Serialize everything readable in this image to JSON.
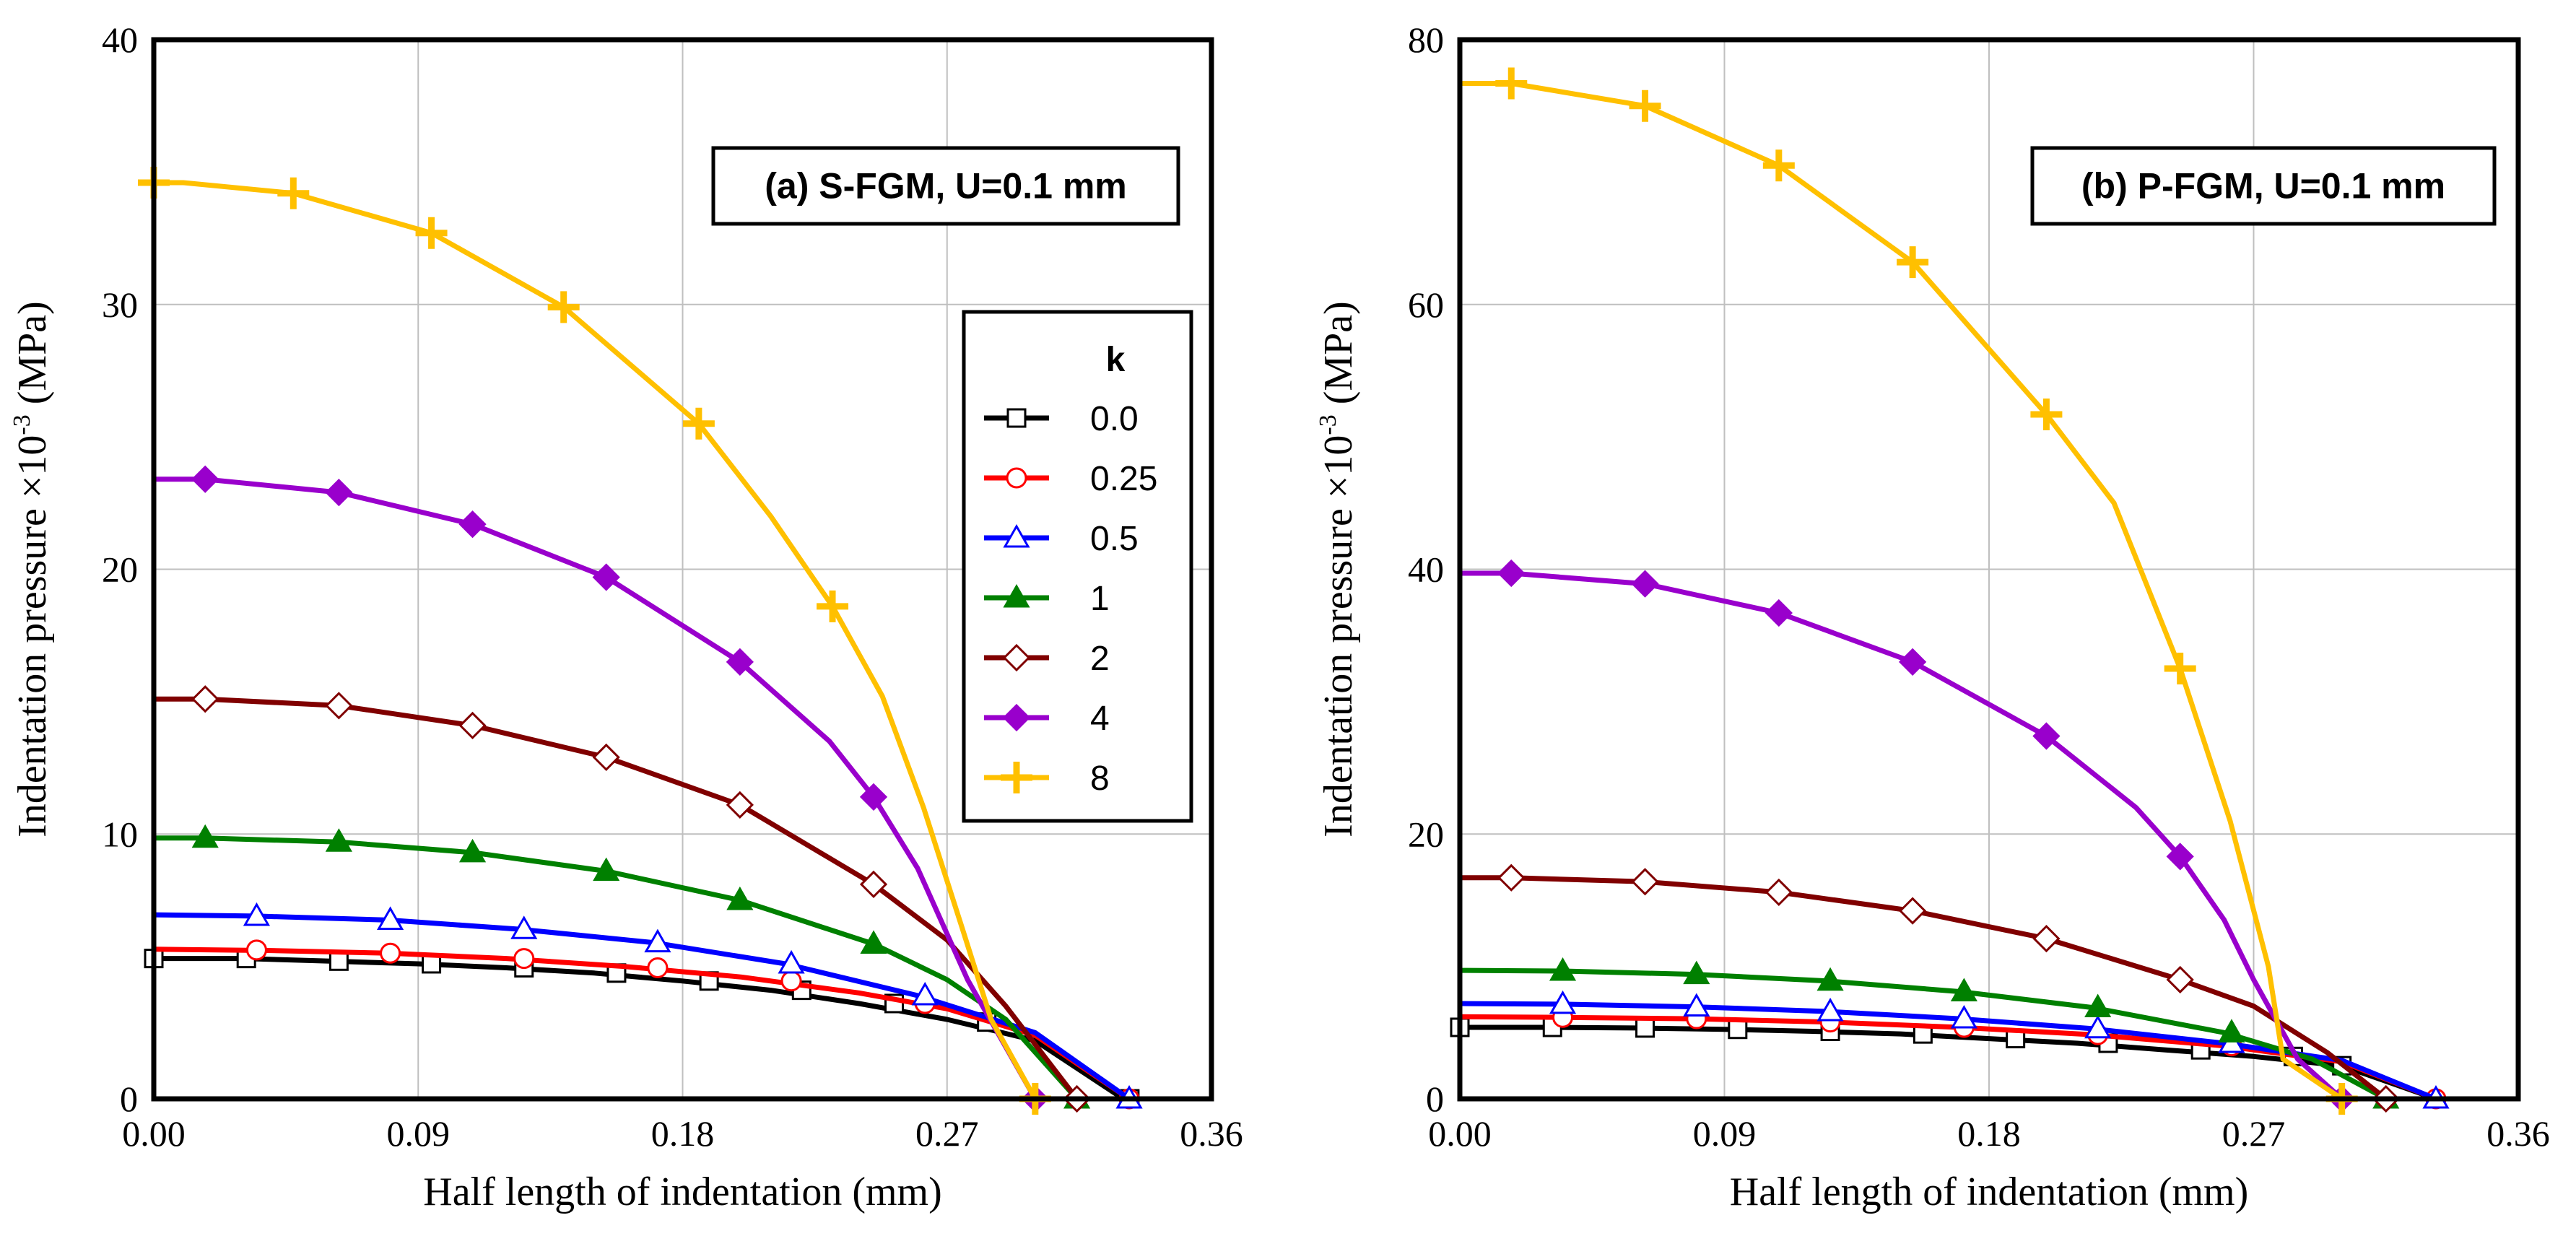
{
  "chart_data": [
    {
      "type": "line",
      "title": "(a) S-FGM, U=0.1 mm",
      "xlabel": "Half length of indentation (mm)",
      "ylabel": "Indentation pressure ×10",
      "ylabel_sup": "-3",
      "ylabel_unit": " (MPa)",
      "xlim": [
        0,
        0.36
      ],
      "ylim": [
        0,
        40
      ],
      "xticks": [
        0,
        0.09,
        0.18,
        0.27,
        0.36
      ],
      "xtick_labels": [
        "0.00",
        "0.09",
        "0.18",
        "0.27",
        "0.36"
      ],
      "yticks": [
        0,
        10,
        20,
        30,
        40
      ],
      "ytick_labels": [
        "0",
        "10",
        "20",
        "30",
        "40"
      ],
      "grid": true,
      "legend": {
        "title": "k",
        "placement": "right"
      },
      "series": [
        {
          "name": "0.0",
          "color": "#000000",
          "marker": "square-open",
          "x": [
            0,
            0.03,
            0.06,
            0.09,
            0.12,
            0.15,
            0.18,
            0.21,
            0.24,
            0.27,
            0.3,
            0.33
          ],
          "y": [
            5.3,
            5.3,
            5.2,
            5.1,
            4.95,
            4.75,
            4.45,
            4.1,
            3.6,
            3.0,
            2.2,
            0
          ],
          "marker_x": [
            0,
            0.0315,
            0.063,
            0.0945,
            0.126,
            0.1575,
            0.189,
            0.2205,
            0.252,
            0.2835,
            0.3322
          ],
          "marker_y": [
            5.3,
            5.3,
            5.2,
            5.1,
            4.95,
            4.75,
            4.45,
            4.1,
            3.6,
            2.9,
            0
          ]
        },
        {
          "name": "0.25",
          "color": "#ff0000",
          "marker": "circle-open",
          "x": [
            0,
            0.04,
            0.08,
            0.12,
            0.16,
            0.2,
            0.24,
            0.27,
            0.3,
            0.332
          ],
          "y": [
            5.65,
            5.6,
            5.5,
            5.3,
            5.0,
            4.6,
            4.0,
            3.4,
            2.4,
            0
          ],
          "marker_x": [
            0.035,
            0.0805,
            0.126,
            0.1715,
            0.217,
            0.2625,
            0.332
          ],
          "marker_y": [
            5.62,
            5.5,
            5.3,
            4.95,
            4.45,
            3.6,
            0
          ]
        },
        {
          "name": "0.5",
          "color": "#0000ff",
          "marker": "triangle-open",
          "x": [
            0,
            0.035,
            0.08,
            0.125,
            0.17,
            0.215,
            0.26,
            0.3,
            0.332
          ],
          "y": [
            6.95,
            6.9,
            6.75,
            6.4,
            5.9,
            5.1,
            3.9,
            2.5,
            0
          ],
          "marker_x": [
            0.035,
            0.0805,
            0.126,
            0.1715,
            0.217,
            0.2625,
            0.332
          ],
          "marker_y": [
            6.9,
            6.75,
            6.4,
            5.9,
            5.1,
            3.9,
            0
          ]
        },
        {
          "name": "1",
          "color": "#008000",
          "marker": "triangle-filled",
          "x": [
            0,
            0.0175,
            0.063,
            0.1085,
            0.154,
            0.1995,
            0.245,
            0.27,
            0.29,
            0.3142
          ],
          "y": [
            9.85,
            9.85,
            9.7,
            9.3,
            8.6,
            7.5,
            5.85,
            4.5,
            3.0,
            0
          ],
          "marker_x": [
            0.0175,
            0.063,
            0.1085,
            0.154,
            0.1995,
            0.245,
            0.3142
          ],
          "marker_y": [
            9.85,
            9.7,
            9.3,
            8.6,
            7.5,
            5.85,
            0
          ]
        },
        {
          "name": "2",
          "color": "#800000",
          "marker": "diamond-open",
          "x": [
            0,
            0.0175,
            0.063,
            0.1085,
            0.154,
            0.1995,
            0.245,
            0.27,
            0.29,
            0.3142
          ],
          "y": [
            15.1,
            15.1,
            14.85,
            14.1,
            12.9,
            11.1,
            8.1,
            6.0,
            3.5,
            0
          ],
          "marker_x": [
            0.0175,
            0.063,
            0.1085,
            0.154,
            0.1995,
            0.245,
            0.3142
          ],
          "marker_y": [
            15.1,
            14.85,
            14.1,
            12.9,
            11.1,
            8.1,
            0
          ]
        },
        {
          "name": "4",
          "color": "#9900cc",
          "marker": "diamond-filled",
          "x": [
            0,
            0.0175,
            0.063,
            0.1085,
            0.154,
            0.1995,
            0.23,
            0.245,
            0.26,
            0.277,
            0.3
          ],
          "y": [
            23.4,
            23.4,
            22.9,
            21.7,
            19.7,
            16.5,
            13.5,
            11.4,
            8.7,
            4.5,
            0
          ],
          "marker_x": [
            0.0175,
            0.063,
            0.1085,
            0.154,
            0.1995,
            0.245,
            0.3
          ],
          "marker_y": [
            23.4,
            22.9,
            21.7,
            19.7,
            16.5,
            11.4,
            0
          ]
        },
        {
          "name": "8",
          "color": "#ffc000",
          "marker": "plus",
          "x": [
            0,
            0.01,
            0.0475,
            0.0945,
            0.1395,
            0.1855,
            0.21,
            0.231,
            0.248,
            0.262,
            0.275,
            0.285,
            0.3
          ],
          "y": [
            34.6,
            34.6,
            34.2,
            32.7,
            29.9,
            25.5,
            22.0,
            18.6,
            15.2,
            11.0,
            6.5,
            3.0,
            0
          ],
          "marker_x": [
            0,
            0.0475,
            0.0945,
            0.1395,
            0.1855,
            0.231,
            0.3
          ],
          "marker_y": [
            34.6,
            34.2,
            32.7,
            29.9,
            25.5,
            18.6,
            0
          ]
        }
      ]
    },
    {
      "type": "line",
      "title": "(b) P-FGM, U=0.1 mm",
      "xlabel": "Half length of indentation (mm)",
      "ylabel": "Indentation pressure ×10",
      "ylabel_sup": "-3",
      "ylabel_unit": " (MPa)",
      "xlim": [
        0,
        0.36
      ],
      "ylim": [
        0,
        80
      ],
      "xticks": [
        0,
        0.09,
        0.18,
        0.27,
        0.36
      ],
      "xtick_labels": [
        "0.00",
        "0.09",
        "0.18",
        "0.27",
        "0.36"
      ],
      "yticks": [
        0,
        20,
        40,
        60,
        80
      ],
      "ytick_labels": [
        "0",
        "20",
        "40",
        "60",
        "80"
      ],
      "grid": true,
      "series": [
        {
          "name": "0.0",
          "color": "#000000",
          "marker": "square-open",
          "x": [
            0,
            0.03,
            0.06,
            0.09,
            0.12,
            0.15,
            0.18,
            0.21,
            0.24,
            0.27,
            0.3,
            0.332
          ],
          "y": [
            5.4,
            5.4,
            5.35,
            5.25,
            5.1,
            4.9,
            4.55,
            4.2,
            3.7,
            3.2,
            2.5,
            0
          ],
          "marker_x": [
            0,
            0.0315,
            0.063,
            0.0945,
            0.126,
            0.1575,
            0.189,
            0.2205,
            0.252,
            0.2835,
            0.3
          ],
          "marker_y": [
            5.4,
            5.4,
            5.35,
            5.25,
            5.1,
            4.9,
            4.55,
            4.2,
            3.7,
            3.2,
            2.5
          ]
        },
        {
          "name": "0.25",
          "color": "#ff0000",
          "marker": "circle-open",
          "x": [
            0,
            0.035,
            0.08,
            0.125,
            0.17,
            0.215,
            0.26,
            0.3,
            0.332
          ],
          "y": [
            6.2,
            6.15,
            6.05,
            5.8,
            5.4,
            4.85,
            4.0,
            2.8,
            0
          ],
          "marker_x": [
            0.035,
            0.0805,
            0.126,
            0.1715,
            0.217,
            0.2625,
            0.332
          ],
          "marker_y": [
            6.15,
            6.05,
            5.8,
            5.4,
            4.85,
            4.0,
            0
          ]
        },
        {
          "name": "0.5",
          "color": "#0000ff",
          "marker": "triangle-open",
          "x": [
            0,
            0.035,
            0.08,
            0.125,
            0.17,
            0.215,
            0.26,
            0.3,
            0.332
          ],
          "y": [
            7.2,
            7.15,
            6.95,
            6.6,
            6.05,
            5.3,
            4.2,
            2.9,
            0
          ],
          "marker_x": [
            0.035,
            0.0805,
            0.126,
            0.1715,
            0.217,
            0.2625,
            0.332
          ],
          "marker_y": [
            7.15,
            6.95,
            6.6,
            6.05,
            5.3,
            4.2,
            0
          ]
        },
        {
          "name": "1",
          "color": "#008000",
          "marker": "triangle-filled",
          "x": [
            0,
            0.035,
            0.08,
            0.125,
            0.17,
            0.215,
            0.26,
            0.29,
            0.315
          ],
          "y": [
            9.7,
            9.65,
            9.4,
            8.9,
            8.1,
            6.9,
            5.0,
            3.0,
            0
          ],
          "marker_x": [
            0.035,
            0.0805,
            0.126,
            0.1715,
            0.217,
            0.2625,
            0.315
          ],
          "marker_y": [
            9.65,
            9.4,
            8.9,
            8.1,
            6.9,
            5.0,
            0
          ]
        },
        {
          "name": "2",
          "color": "#800000",
          "marker": "diamond-open",
          "x": [
            0,
            0.0175,
            0.063,
            0.1085,
            0.154,
            0.1995,
            0.245,
            0.27,
            0.295,
            0.315
          ],
          "y": [
            16.7,
            16.7,
            16.4,
            15.6,
            14.2,
            12.1,
            9.0,
            7.0,
            3.5,
            0
          ],
          "marker_x": [
            0.0175,
            0.063,
            0.1085,
            0.154,
            0.1995,
            0.245,
            0.315
          ],
          "marker_y": [
            16.7,
            16.4,
            15.6,
            14.2,
            12.1,
            9.0,
            0
          ]
        },
        {
          "name": "4",
          "color": "#9900cc",
          "marker": "diamond-filled",
          "x": [
            0,
            0.0175,
            0.063,
            0.1085,
            0.154,
            0.1995,
            0.23,
            0.245,
            0.26,
            0.27,
            0.285,
            0.3
          ],
          "y": [
            39.7,
            39.7,
            38.9,
            36.7,
            33.0,
            27.4,
            22.0,
            18.3,
            13.5,
            9.0,
            3.0,
            0
          ],
          "marker_x": [
            0.0175,
            0.063,
            0.1085,
            0.154,
            0.1995,
            0.245,
            0.3
          ],
          "marker_y": [
            39.7,
            38.9,
            36.7,
            33.0,
            27.4,
            18.3,
            0
          ]
        },
        {
          "name": "8",
          "color": "#ffc000",
          "marker": "plus",
          "x": [
            0,
            0.0175,
            0.063,
            0.1085,
            0.154,
            0.1995,
            0.2225,
            0.245,
            0.262,
            0.275,
            0.28,
            0.3
          ],
          "y": [
            76.7,
            76.7,
            75.0,
            70.5,
            63.2,
            51.7,
            45.0,
            32.5,
            21.0,
            10.0,
            3.0,
            0
          ],
          "marker_x": [
            0.0175,
            0.063,
            0.1085,
            0.154,
            0.1995,
            0.245,
            0.3
          ],
          "marker_y": [
            76.7,
            75.0,
            70.5,
            63.2,
            51.7,
            32.5,
            0
          ]
        }
      ]
    }
  ]
}
